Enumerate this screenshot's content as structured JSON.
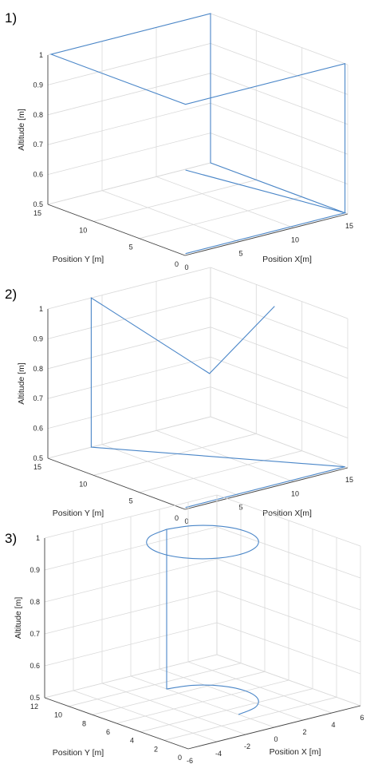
{
  "colors": {
    "series": "#4a86c8",
    "grid": "#d9d9d9",
    "axis": "#444444"
  },
  "chart_data": [
    {
      "type": "line",
      "panel_label": "1)",
      "xlabel": "Position X[m]",
      "ylabel": "Position Y [m]",
      "zlabel": "Altitude [m]",
      "xlim": [
        0,
        15
      ],
      "ylim": [
        0,
        15
      ],
      "zlim": [
        0.5,
        1
      ],
      "xticks": [
        "0",
        "5",
        "10",
        "15"
      ],
      "yticks": [
        "0",
        "5",
        "10",
        "15"
      ],
      "zticks": [
        "0.5",
        "0.6",
        "0.7",
        "0.8",
        "0.9",
        "1"
      ],
      "grid": true,
      "series": [
        {
          "x": [
            0.3,
            0.3,
            15,
            15,
            15,
            15,
            0.3,
            0.3,
            0.3,
            15,
            15,
            0.3
          ],
          "y": [
            0.3,
            0.3,
            0.3,
            0.3,
            15,
            15,
            15,
            15,
            0.3,
            0.3,
            0.3,
            0.3
          ],
          "z": [
            0.5,
            0.5,
            0.5,
            0.5,
            0.5,
            1,
            1,
            1,
            1,
            1,
            0.5,
            0.78
          ]
        }
      ]
    },
    {
      "type": "line",
      "panel_label": "2)",
      "xlabel": "Position X[m]",
      "ylabel": "Position Y [m]",
      "zlabel": "Altitude [m]",
      "xlim": [
        0,
        15
      ],
      "ylim": [
        0,
        15
      ],
      "zlim": [
        0.5,
        1
      ],
      "xticks": [
        "0",
        "5",
        "10",
        "15"
      ],
      "yticks": [
        "0",
        "5",
        "10",
        "15"
      ],
      "zticks": [
        "0.5",
        "0.6",
        "0.7",
        "0.8",
        "0.9",
        "1"
      ],
      "grid": true,
      "series": [
        {
          "x": [
            0.3,
            15,
            4,
            4,
            9,
            15
          ],
          "y": [
            0.3,
            0.3,
            15,
            15,
            8,
            8
          ],
          "z": [
            0.5,
            0.5,
            0.5,
            1,
            0.78,
            0.95
          ]
        }
      ]
    },
    {
      "type": "line",
      "panel_label": "3)",
      "xlabel": "Position X [m]",
      "ylabel": "Position Y [m]",
      "zlabel": "Altitude [m]",
      "xlim": [
        -6,
        6
      ],
      "ylim": [
        0,
        12
      ],
      "zlim": [
        0.5,
        1
      ],
      "xticks": [
        "-6",
        "-4",
        "-2",
        "0",
        "2",
        "4",
        "6"
      ],
      "yticks": [
        "0",
        "2",
        "4",
        "6",
        "8",
        "10",
        "12"
      ],
      "zticks": [
        "0.5",
        "0.6",
        "0.7",
        "0.8",
        "0.9",
        "1"
      ],
      "grid": true,
      "series": [
        {
          "x": [
            0,
            1.5,
            2.6,
            3,
            2.6,
            1.5,
            0,
            0,
            1.5,
            2.6,
            3,
            2.6,
            1.5,
            0,
            -1.5,
            -2.6,
            -3,
            -2.6,
            -1.5,
            0
          ],
          "y": [
            3,
            3.4,
            4.5,
            6,
            7.5,
            8.6,
            9,
            9,
            8.6,
            7.5,
            6,
            4.5,
            3.4,
            3,
            3.4,
            4.5,
            6,
            7.5,
            8.6,
            9
          ],
          "z": [
            0.5,
            0.5,
            0.5,
            0.5,
            0.5,
            0.5,
            0.5,
            1,
            1,
            1,
            1,
            1,
            1,
            1,
            1,
            1,
            1,
            1,
            1,
            1
          ]
        }
      ]
    }
  ]
}
